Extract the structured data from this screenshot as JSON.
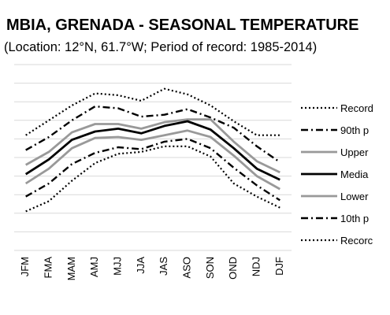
{
  "chart_data": {
    "type": "line",
    "title": "MBIA, GRENADA - SEASONAL TEMPERATURE",
    "subtitle": "(Location: 12°N, 61.7°W; Period of record: 1985-2014)",
    "xlabel": "",
    "ylabel": "",
    "categories": [
      "JFM",
      "FMA",
      "MAM",
      "AMJ",
      "MJJ",
      "JJA",
      "JAS",
      "ASO",
      "SON",
      "OND",
      "NDJ",
      "DJF"
    ],
    "ylim": [
      0,
      10
    ],
    "grid": true,
    "legend_position": "right",
    "series": [
      {
        "name": "Record",
        "style": "dotted",
        "color": "#000000",
        "values": [
          6.2,
          7.0,
          7.8,
          8.45,
          8.35,
          8.05,
          8.7,
          8.4,
          7.8,
          6.95,
          6.2,
          6.2
        ]
      },
      {
        "name": "90th p",
        "style": "dash-dot",
        "color": "#000000",
        "values": [
          5.4,
          6.1,
          7.0,
          7.75,
          7.65,
          7.2,
          7.3,
          7.6,
          7.15,
          6.6,
          5.6,
          4.75
        ]
      },
      {
        "name": "Upper",
        "style": "solid",
        "color": "#999999",
        "values": [
          4.6,
          5.3,
          6.35,
          6.8,
          6.8,
          6.55,
          6.9,
          7.05,
          7.05,
          5.85,
          4.8,
          4.2
        ]
      },
      {
        "name": "Media",
        "style": "solid",
        "color": "#000000",
        "values": [
          4.1,
          4.9,
          5.95,
          6.4,
          6.55,
          6.3,
          6.7,
          6.95,
          6.5,
          5.5,
          4.4,
          3.8
        ]
      },
      {
        "name": "Lower",
        "style": "solid",
        "color": "#999999",
        "values": [
          3.6,
          4.4,
          5.5,
          6.05,
          6.1,
          5.95,
          6.2,
          6.45,
          6.1,
          5.1,
          4.0,
          3.3
        ]
      },
      {
        "name": "10th p",
        "style": "dash-dot",
        "color": "#000000",
        "values": [
          2.9,
          3.6,
          4.65,
          5.25,
          5.55,
          5.45,
          5.85,
          6.0,
          5.5,
          4.45,
          3.5,
          2.7
        ]
      },
      {
        "name": "Recorc",
        "style": "dotted",
        "color": "#000000",
        "values": [
          2.1,
          2.65,
          3.75,
          4.7,
          5.2,
          5.3,
          5.6,
          5.6,
          5.05,
          3.6,
          2.9,
          2.3
        ]
      }
    ]
  }
}
